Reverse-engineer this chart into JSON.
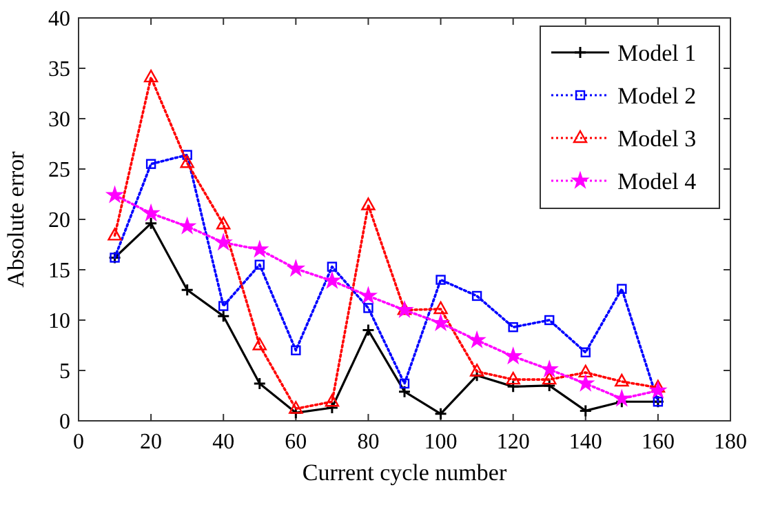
{
  "chart_data": {
    "type": "line",
    "xlabel": "Current cycle number",
    "ylabel": "Absolute error",
    "x": [
      10,
      20,
      30,
      40,
      50,
      60,
      70,
      80,
      90,
      100,
      110,
      120,
      130,
      140,
      150,
      160
    ],
    "xlim": [
      0,
      180
    ],
    "xticks": [
      0,
      20,
      40,
      60,
      80,
      100,
      120,
      140,
      160,
      180
    ],
    "ylim": [
      0,
      40
    ],
    "yticks": [
      0,
      5,
      10,
      15,
      20,
      25,
      30,
      35,
      40
    ],
    "grid": false,
    "legend": "top right",
    "series": [
      {
        "name": "Model 1",
        "color": "#000000",
        "marker": "cross",
        "line_style": "solid",
        "values": [
          16.2,
          19.6,
          13.0,
          10.4,
          3.7,
          0.8,
          1.3,
          9.0,
          2.9,
          0.7,
          4.5,
          3.4,
          3.5,
          1.0,
          1.9,
          1.9
        ]
      },
      {
        "name": "Model 2",
        "color": "#0000ff",
        "marker": "square",
        "line_style": "dotted",
        "values": [
          16.2,
          25.5,
          26.4,
          11.4,
          15.5,
          7.0,
          15.3,
          11.2,
          3.7,
          14.0,
          12.4,
          9.3,
          10.0,
          6.8,
          13.1,
          1.9
        ]
      },
      {
        "name": "Model 3",
        "color": "#ff0000",
        "marker": "triangle",
        "line_style": "dotted",
        "values": [
          18.4,
          34.1,
          25.6,
          19.5,
          7.5,
          1.2,
          1.9,
          21.4,
          11.0,
          11.1,
          4.9,
          4.1,
          4.1,
          4.8,
          3.9,
          3.3
        ]
      },
      {
        "name": "Model 4",
        "color": "#ff00ff",
        "marker": "star",
        "line_style": "dotted",
        "values": [
          22.4,
          20.6,
          19.3,
          17.7,
          17.0,
          15.1,
          13.9,
          12.4,
          11.0,
          9.7,
          8.0,
          6.4,
          5.1,
          3.7,
          2.2,
          3.0
        ]
      }
    ]
  }
}
